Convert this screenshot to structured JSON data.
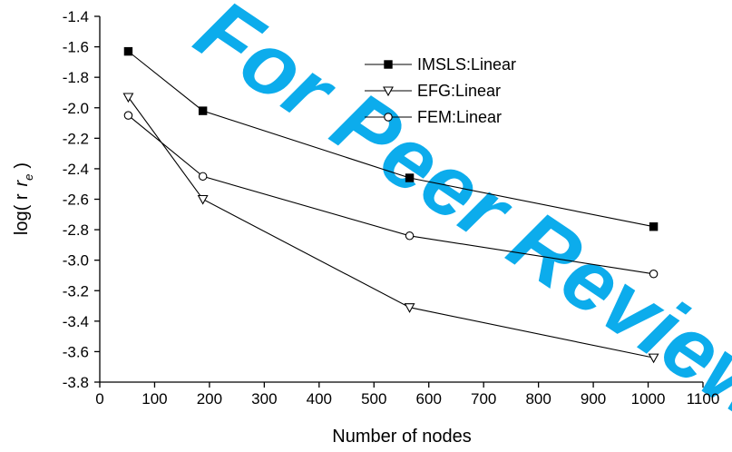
{
  "watermark_text": "For Peer Review",
  "chart_data": {
    "type": "line",
    "xlabel": "Number of nodes",
    "ylabel": "log( r",
    "ylabel_subscript": "e",
    "ylabel_close": ")",
    "xlim": [
      0,
      1100
    ],
    "ylim": [
      -3.8,
      -1.4
    ],
    "xticks": [
      0,
      100,
      200,
      300,
      400,
      500,
      600,
      700,
      800,
      900,
      1000,
      1100
    ],
    "yticks": [
      -1.4,
      -1.6,
      -1.8,
      -2.0,
      -2.2,
      -2.4,
      -2.6,
      -2.8,
      -3.0,
      -3.2,
      -3.4,
      -3.6,
      -3.8
    ],
    "ytick_labels": [
      "-1.4",
      "-1.6",
      "-1.8",
      "-2.0",
      "-2.2",
      "-2.4",
      "-2.6",
      "-2.8",
      "-3.0",
      "-3.2",
      "-3.4",
      "-3.6",
      "-3.8"
    ],
    "grid": false,
    "legend_position": "top-right",
    "series": [
      {
        "name": "IMSLS:Linear",
        "marker": "filled-square",
        "x": [
          52,
          188,
          565,
          1010
        ],
        "y": [
          -1.63,
          -2.02,
          -2.46,
          -2.78
        ]
      },
      {
        "name": "EFG:Linear",
        "marker": "open-triangle-down",
        "x": [
          52,
          188,
          565,
          1010
        ],
        "y": [
          -1.93,
          -2.6,
          -3.31,
          -3.64
        ]
      },
      {
        "name": "FEM:Linear",
        "marker": "open-circle",
        "x": [
          52,
          188,
          565,
          1010
        ],
        "y": [
          -2.05,
          -2.45,
          -2.84,
          -3.09
        ]
      }
    ]
  }
}
